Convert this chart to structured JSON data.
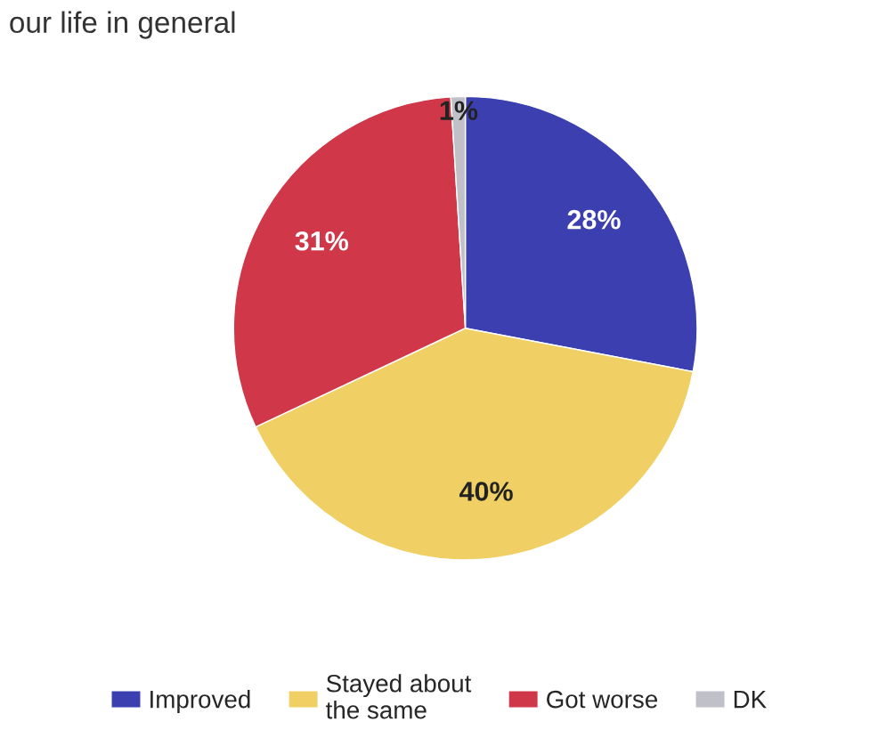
{
  "chart_data": {
    "type": "pie",
    "title": "our life in general",
    "categories": [
      "Improved",
      "Stayed about\nthe same",
      "Got worse",
      "DK"
    ],
    "values": [
      28,
      40,
      31,
      1
    ],
    "value_labels": [
      "28%",
      "40%",
      "31%",
      "1%"
    ],
    "colors": [
      "#3b3fb0",
      "#f0d064",
      "#d0384a",
      "#c0c0c8"
    ],
    "legend": "bottom"
  }
}
